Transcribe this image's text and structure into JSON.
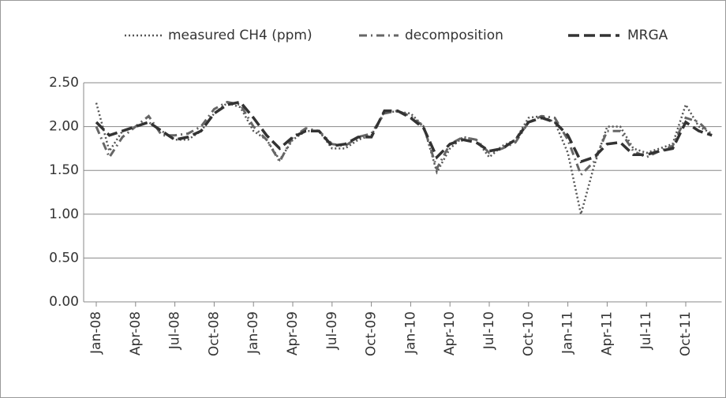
{
  "chart_data": {
    "type": "line",
    "categories": [
      "Jan-08",
      null,
      null,
      "Apr-08",
      null,
      null,
      "Jul-08",
      null,
      null,
      "Oct-08",
      null,
      null,
      "Jan-09",
      null,
      null,
      "Apr-09",
      null,
      null,
      "Jul-09",
      null,
      null,
      "Oct-09",
      null,
      null,
      "Jan-10",
      null,
      null,
      "Apr-10",
      null,
      null,
      "Jul-10",
      null,
      null,
      "Oct-10",
      null,
      null,
      "Jan-11",
      null,
      null,
      "Apr-11",
      null,
      null,
      "Jul-11",
      null,
      null,
      "Oct-11",
      null,
      null
    ],
    "series": [
      {
        "name": "measured CH4 (ppm)",
        "color": "#555555",
        "line_style": "dotted",
        "values": [
          2.27,
          1.72,
          1.95,
          2.0,
          2.05,
          1.95,
          1.85,
          1.85,
          1.95,
          2.15,
          2.27,
          2.22,
          1.95,
          1.85,
          1.62,
          1.85,
          1.95,
          1.95,
          1.75,
          1.75,
          1.85,
          1.9,
          2.17,
          2.17,
          2.15,
          2.0,
          1.48,
          1.75,
          1.88,
          1.85,
          1.65,
          1.78,
          1.85,
          2.1,
          2.12,
          2.05,
          1.7,
          1.0,
          1.55,
          2.0,
          2.0,
          1.75,
          1.7,
          1.75,
          1.8,
          2.25,
          2.0,
          1.92
        ]
      },
      {
        "name": "decomposition",
        "color": "#666666",
        "line_style": "dash-dot",
        "values": [
          2.0,
          1.65,
          1.88,
          2.0,
          2.12,
          1.9,
          1.9,
          1.92,
          2.0,
          2.2,
          2.28,
          2.25,
          2.0,
          1.85,
          1.6,
          1.88,
          1.98,
          1.95,
          1.8,
          1.78,
          1.88,
          1.92,
          2.15,
          2.18,
          2.12,
          2.0,
          1.52,
          1.8,
          1.88,
          1.85,
          1.7,
          1.75,
          1.82,
          2.05,
          2.12,
          2.1,
          1.85,
          1.45,
          1.6,
          1.95,
          1.95,
          1.72,
          1.65,
          1.72,
          1.78,
          2.1,
          2.05,
          1.9
        ]
      },
      {
        "name": "MRGA",
        "color": "#333333",
        "line_style": "dashed",
        "values": [
          2.05,
          1.9,
          1.95,
          2.0,
          2.05,
          1.95,
          1.85,
          1.88,
          1.95,
          2.15,
          2.25,
          2.28,
          2.1,
          1.9,
          1.75,
          1.88,
          1.95,
          1.95,
          1.78,
          1.8,
          1.88,
          1.88,
          2.18,
          2.18,
          2.1,
          1.98,
          1.65,
          1.8,
          1.85,
          1.82,
          1.72,
          1.75,
          1.85,
          2.05,
          2.1,
          2.05,
          1.9,
          1.6,
          1.65,
          1.8,
          1.82,
          1.68,
          1.68,
          1.72,
          1.75,
          2.05,
          1.95,
          1.9
        ]
      }
    ],
    "ylim": [
      0,
      2.5
    ],
    "yticks": [
      {
        "value": 0,
        "label": "0.00"
      },
      {
        "value": 0.5,
        "label": "0.50"
      },
      {
        "value": 1,
        "label": "1.00"
      },
      {
        "value": 1.5,
        "label": "1.50"
      },
      {
        "value": 2,
        "label": "2.00"
      },
      {
        "value": 2.5,
        "label": "2.50"
      }
    ],
    "grid": true,
    "legend": "top"
  }
}
